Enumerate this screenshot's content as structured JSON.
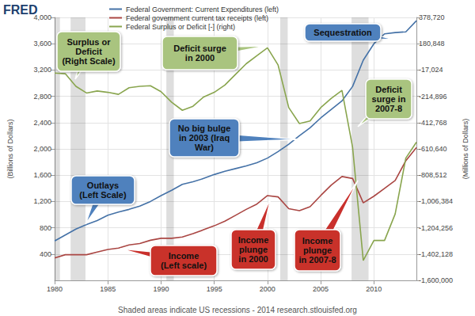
{
  "chart_data": {
    "type": "line",
    "brand": "FRED",
    "ylabel": "(Billions of Dollars)",
    "y2label": "(Millions of Dollars)",
    "footer": "Shaded areas indicate US recessions - 2014 research.stlouisfed.org",
    "x": [
      1980,
      1981,
      1982,
      1983,
      1984,
      1985,
      1986,
      1987,
      1988,
      1989,
      1990,
      1991,
      1992,
      1993,
      1994,
      1995,
      1996,
      1997,
      1998,
      1999,
      2000,
      2001,
      2002,
      2003,
      2004,
      2005,
      2006,
      2007,
      2008,
      2009,
      2010,
      2011,
      2012,
      2013,
      2014
    ],
    "xlim": [
      1980,
      2014
    ],
    "xticks": [
      1980,
      1985,
      1990,
      1995,
      2000,
      2005,
      2010
    ],
    "ylim": [
      0,
      4000
    ],
    "yticks": [
      400,
      800,
      {
        "value": 1200,
        "label": "1,200"
      },
      {
        "value": 1600,
        "label": "1,600"
      },
      {
        "value": 2000,
        "label": "2,000"
      },
      {
        "value": 2400,
        "label": "2,400"
      },
      {
        "value": 2800,
        "label": "2,800"
      },
      {
        "value": 3200,
        "label": "3,200"
      },
      {
        "value": 3600,
        "label": "3,600"
      },
      {
        "value": 4000,
        "label": "4,000"
      }
    ],
    "y2lim": [
      -1600000,
      378720
    ],
    "y2ticks": [
      {
        "value": 378720,
        "label": "378,720"
      },
      {
        "value": 180848,
        "label": "180,848"
      },
      {
        "value": -17024,
        "label": "-17,024"
      },
      {
        "value": -214896,
        "label": "-214,896"
      },
      {
        "value": -412768,
        "label": "-412,768"
      },
      {
        "value": -610640,
        "label": "-610,640"
      },
      {
        "value": -808512,
        "label": "-808,512"
      },
      {
        "value": -1006384,
        "label": "-1,006,384"
      },
      {
        "value": -1204256,
        "label": "-1,204,256"
      },
      {
        "value": -1402128,
        "label": "-1,402,128"
      },
      {
        "value": -1600000,
        "label": "-1,600,000"
      }
    ],
    "grid": true,
    "legend": "top",
    "recessions": [
      [
        1980,
        1980.5
      ],
      [
        1981.5,
        1982.9
      ],
      [
        1990.5,
        1991.2
      ],
      [
        2001.2,
        2001.9
      ],
      [
        2007.9,
        2009.5
      ]
    ],
    "series": [
      {
        "name": "Federal Government: Current Expenditures (left)",
        "color": "#4572a7",
        "values": [
          600,
          690,
          780,
          850,
          910,
          990,
          1040,
          1080,
          1130,
          1200,
          1290,
          1370,
          1460,
          1500,
          1550,
          1610,
          1660,
          1700,
          1740,
          1790,
          1860,
          1960,
          2070,
          2200,
          2320,
          2470,
          2600,
          2730,
          2950,
          3350,
          3600,
          3750,
          3770,
          3780,
          3950
        ]
      },
      {
        "name": "Federal government current tax receipts (left)",
        "color": "#aa4643",
        "values": [
          340,
          390,
          390,
          390,
          430,
          470,
          490,
          540,
          560,
          610,
          640,
          640,
          660,
          710,
          770,
          830,
          900,
          990,
          1080,
          1160,
          1290,
          1270,
          1090,
          1060,
          1120,
          1290,
          1450,
          1580,
          1550,
          1180,
          1280,
          1400,
          1520,
          1820,
          2020
        ]
      },
      {
        "name": "Federal Surplus or Deficit [-] (right)",
        "color": "#89a54e",
        "axis": "y2",
        "values": [
          -40000,
          -45000,
          -140000,
          -190000,
          -175000,
          -185000,
          -200000,
          -150000,
          -140000,
          -135000,
          -180000,
          -260000,
          -320000,
          -290000,
          -220000,
          -185000,
          -130000,
          -50000,
          30000,
          90000,
          150000,
          20000,
          -300000,
          -420000,
          -400000,
          -300000,
          -230000,
          -170000,
          -600000,
          -1450000,
          -1300000,
          -1300000,
          -1100000,
          -680000,
          -560000
        ]
      }
    ],
    "annotations": [
      {
        "text": "Surplus or\nDeficit\n(Right Scale)",
        "color": "#a9c47f"
      },
      {
        "text": "Deficit surge\nin 2000",
        "color": "#a9c47f"
      },
      {
        "text": "Sequestration",
        "color": "#4f81bd"
      },
      {
        "text": "Deficit\nsurge in\n2007-8",
        "color": "#a9c47f"
      },
      {
        "text": "No big bulge\nin 2003 (Iraq\nWar)",
        "color": "#4f81bd"
      },
      {
        "text": "Outlays\n(Left Scale)",
        "color": "#4f81bd"
      },
      {
        "text": "Income\n(Left scale)",
        "color": "#c9302c"
      },
      {
        "text": "Income\nplunge\nin 2000",
        "color": "#c9302c"
      },
      {
        "text": "Income\nplunge\nin 2007-8",
        "color": "#c9302c"
      }
    ]
  }
}
